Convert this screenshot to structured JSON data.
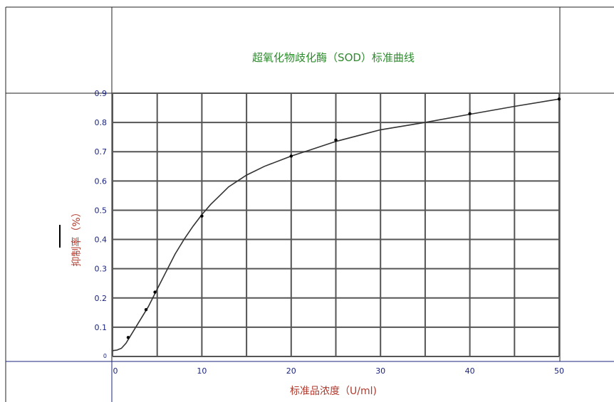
{
  "chart_data": {
    "type": "line",
    "title": "超氧化物歧化酶（SOD）标准曲线",
    "xlabel": "标准品浓度（U/ml)",
    "ylabel": "抑制率（%）",
    "xlim": [
      0,
      50
    ],
    "ylim": [
      0,
      0.9
    ],
    "x_ticks": [
      "0",
      "10",
      "20",
      "30",
      "40",
      "50"
    ],
    "y_ticks": [
      "0",
      "0.1",
      "0.2",
      "0.3",
      "0.4",
      "0.5",
      "0.6",
      "0.7",
      "0.8",
      "0.9"
    ],
    "grid": true,
    "points": {
      "x": [
        1.75,
        3.75,
        4.75,
        10,
        20,
        25,
        40,
        50
      ],
      "y": [
        0.065,
        0.16,
        0.22,
        0.48,
        0.685,
        0.74,
        0.83,
        0.88
      ]
    },
    "curve": {
      "x": [
        0,
        0.5,
        1,
        1.5,
        2,
        3,
        4,
        5,
        6,
        7,
        8,
        9,
        10,
        11,
        12,
        13,
        14,
        15,
        17,
        20,
        22,
        25,
        30,
        35,
        40,
        45,
        50
      ],
      "y": [
        0.02,
        0.022,
        0.028,
        0.045,
        0.07,
        0.12,
        0.17,
        0.23,
        0.29,
        0.35,
        0.4,
        0.445,
        0.485,
        0.52,
        0.55,
        0.58,
        0.6,
        0.62,
        0.65,
        0.685,
        0.705,
        0.735,
        0.775,
        0.8,
        0.828,
        0.855,
        0.88
      ]
    },
    "colors": {
      "title": "#2e8b2e",
      "ticks": "#1a237e",
      "axis_title": "#b03a2e",
      "grid": "#555555",
      "curve": "#333333"
    }
  }
}
